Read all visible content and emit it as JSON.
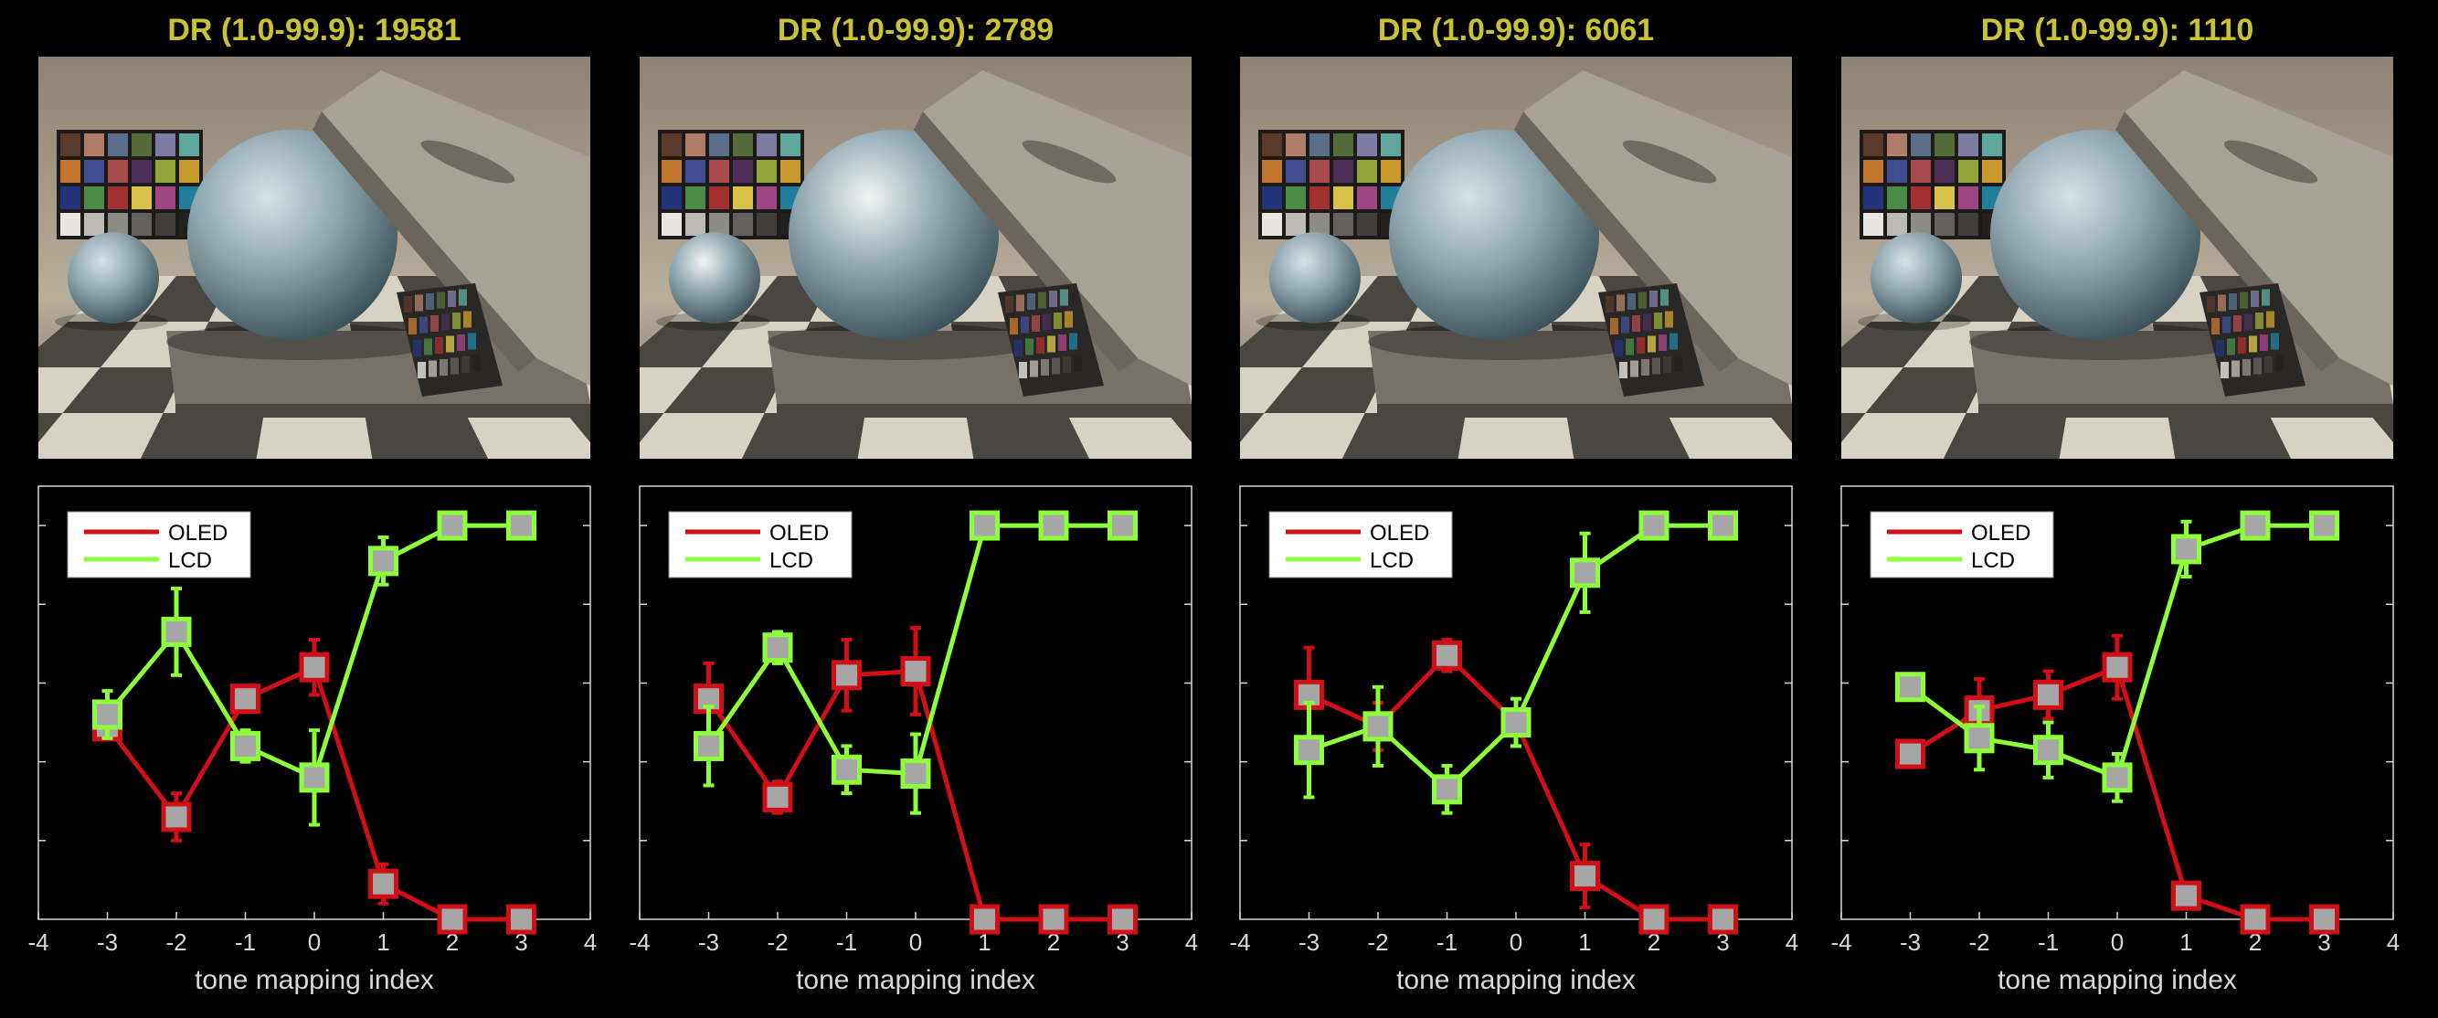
{
  "colors": {
    "background": "#000000",
    "title": "#c9c233",
    "oled": "#d10f17",
    "lcd": "#8cff3a",
    "marker_face": "#a6a6a6",
    "axis": "#d8d8d8"
  },
  "chart_data": [
    {
      "type": "line",
      "title": "DR (1.0-99.9): 19581",
      "xlabel": "tone mapping index",
      "ylabel": "",
      "xlim": [
        -4,
        4
      ],
      "ylim": [
        0,
        5.5
      ],
      "xticks": [
        "-4",
        "-3",
        "-2",
        "-1",
        "0",
        "1",
        "2",
        "3",
        "4"
      ],
      "legend_position": "top-left",
      "grid": false,
      "series": [
        {
          "name": "OLED",
          "color": "#d10f17",
          "x": [
            -3,
            -2,
            -1,
            0,
            1,
            2,
            3
          ],
          "y": [
            2.45,
            1.3,
            2.8,
            3.2,
            0.45,
            0.0,
            0.0
          ],
          "err": [
            0.15,
            0.3,
            0.15,
            0.35,
            0.25,
            0.0,
            0.0
          ]
        },
        {
          "name": "LCD",
          "color": "#8cff3a",
          "x": [
            -3,
            -2,
            -1,
            0,
            1,
            2,
            3
          ],
          "y": [
            2.6,
            3.65,
            2.2,
            1.8,
            4.55,
            5.0,
            5.0
          ],
          "err": [
            0.3,
            0.55,
            0.2,
            0.6,
            0.3,
            0.0,
            0.0
          ]
        }
      ]
    },
    {
      "type": "line",
      "title": "DR (1.0-99.9): 2789",
      "xlabel": "tone mapping index",
      "ylabel": "",
      "xlim": [
        -4,
        4
      ],
      "ylim": [
        0,
        5.5
      ],
      "xticks": [
        "-4",
        "-3",
        "-2",
        "-1",
        "0",
        "1",
        "2",
        "3",
        "4"
      ],
      "legend_position": "top-left",
      "grid": false,
      "series": [
        {
          "name": "OLED",
          "color": "#d10f17",
          "x": [
            -3,
            -2,
            -1,
            0,
            1,
            2,
            3
          ],
          "y": [
            2.8,
            1.55,
            3.1,
            3.15,
            0.0,
            0.0,
            0.0
          ],
          "err": [
            0.45,
            0.2,
            0.45,
            0.55,
            0.0,
            0.0,
            0.0
          ]
        },
        {
          "name": "LCD",
          "color": "#8cff3a",
          "x": [
            -3,
            -2,
            -1,
            0,
            1,
            2,
            3
          ],
          "y": [
            2.2,
            3.45,
            1.9,
            1.85,
            5.0,
            5.0,
            5.0
          ],
          "err": [
            0.5,
            0.2,
            0.3,
            0.5,
            0.0,
            0.0,
            0.0
          ]
        }
      ]
    },
    {
      "type": "line",
      "title": "DR (1.0-99.9): 6061",
      "xlabel": "tone mapping index",
      "ylabel": "",
      "xlim": [
        -4,
        4
      ],
      "ylim": [
        0,
        5.5
      ],
      "xticks": [
        "-4",
        "-3",
        "-2",
        "-1",
        "0",
        "1",
        "2",
        "3",
        "4"
      ],
      "legend_position": "top-left",
      "grid": false,
      "series": [
        {
          "name": "OLED",
          "color": "#d10f17",
          "x": [
            -3,
            -2,
            -1,
            0,
            1,
            2,
            3
          ],
          "y": [
            2.85,
            2.45,
            3.35,
            2.5,
            0.55,
            0.0,
            0.0
          ],
          "err": [
            0.6,
            0.3,
            0.2,
            0.3,
            0.4,
            0.0,
            0.0
          ]
        },
        {
          "name": "LCD",
          "color": "#8cff3a",
          "x": [
            -3,
            -2,
            -1,
            0,
            1,
            2,
            3
          ],
          "y": [
            2.15,
            2.45,
            1.65,
            2.5,
            4.4,
            5.0,
            5.0
          ],
          "err": [
            0.6,
            0.5,
            0.3,
            0.3,
            0.5,
            0.0,
            0.0
          ]
        }
      ]
    },
    {
      "type": "line",
      "title": "DR (1.0-99.9): 1110",
      "xlabel": "tone mapping index",
      "ylabel": "",
      "xlim": [
        -4,
        4
      ],
      "ylim": [
        0,
        5.5
      ],
      "xticks": [
        "-4",
        "-3",
        "-2",
        "-1",
        "0",
        "1",
        "2",
        "3",
        "4"
      ],
      "legend_position": "top-left",
      "grid": false,
      "series": [
        {
          "name": "OLED",
          "color": "#d10f17",
          "x": [
            -3,
            -2,
            -1,
            0,
            1,
            2,
            3
          ],
          "y": [
            2.1,
            2.65,
            2.85,
            3.2,
            0.3,
            0.0,
            0.0
          ],
          "err": [
            0.1,
            0.4,
            0.3,
            0.4,
            0.15,
            0.0,
            0.0
          ]
        },
        {
          "name": "LCD",
          "color": "#8cff3a",
          "x": [
            -3,
            -2,
            -1,
            0,
            1,
            2,
            3
          ],
          "y": [
            2.95,
            2.3,
            2.15,
            1.8,
            4.7,
            5.0,
            5.0
          ],
          "err": [
            0.15,
            0.4,
            0.35,
            0.3,
            0.35,
            0.0,
            0.0
          ]
        }
      ]
    }
  ]
}
